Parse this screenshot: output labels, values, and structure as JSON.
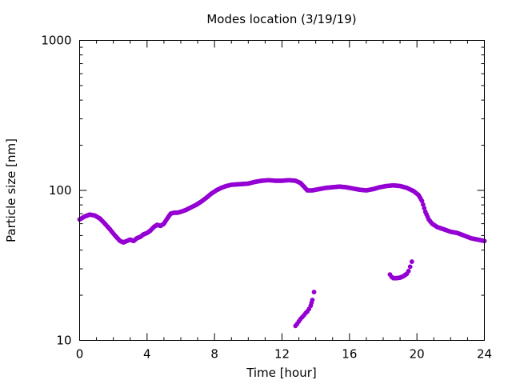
{
  "chart_data": {
    "type": "scatter",
    "title": "Modes location (3/19/19)",
    "xlabel": "Time [hour]",
    "ylabel": "Particle size [nm]",
    "xlim": [
      0,
      24
    ],
    "ylim": [
      10,
      1000
    ],
    "yscale": "log",
    "grid": false,
    "legend": "none",
    "x_ticks": [
      0,
      4,
      8,
      12,
      16,
      20,
      24
    ],
    "y_ticks": [
      10,
      100,
      1000
    ],
    "x_tick_labels": [
      "0",
      "4",
      "8",
      "12",
      "16",
      "20",
      "24"
    ],
    "y_tick_labels": [
      "10",
      "100",
      "1000"
    ],
    "marker_color": "#9400d3",
    "series": [
      {
        "points": [
          [
            0.0,
            64
          ],
          [
            0.3,
            67
          ],
          [
            0.6,
            69
          ],
          [
            0.9,
            68
          ],
          [
            1.2,
            65
          ],
          [
            1.5,
            60
          ],
          [
            1.8,
            55
          ],
          [
            2.1,
            50
          ],
          [
            2.4,
            46
          ],
          [
            2.6,
            45
          ],
          [
            2.8,
            46
          ],
          [
            3.0,
            47
          ],
          [
            3.2,
            46
          ],
          [
            3.4,
            48
          ],
          [
            3.6,
            49
          ],
          [
            3.8,
            51
          ],
          [
            4.0,
            52
          ],
          [
            4.2,
            54
          ],
          [
            4.4,
            57
          ],
          [
            4.6,
            59
          ],
          [
            4.8,
            58
          ],
          [
            5.0,
            60
          ],
          [
            5.2,
            65
          ],
          [
            5.4,
            70
          ],
          [
            5.6,
            71
          ],
          [
            5.8,
            71
          ],
          [
            6.0,
            72
          ],
          [
            6.3,
            74
          ],
          [
            6.6,
            77
          ],
          [
            6.9,
            80
          ],
          [
            7.2,
            84
          ],
          [
            7.5,
            89
          ],
          [
            7.8,
            95
          ],
          [
            8.1,
            100
          ],
          [
            8.4,
            104
          ],
          [
            8.7,
            107
          ],
          [
            9.0,
            109
          ],
          [
            9.5,
            110
          ],
          [
            10.0,
            111
          ],
          [
            10.4,
            114
          ],
          [
            10.8,
            116
          ],
          [
            11.2,
            117
          ],
          [
            11.6,
            116
          ],
          [
            12.0,
            116
          ],
          [
            12.4,
            117
          ],
          [
            12.8,
            116
          ],
          [
            13.1,
            112
          ],
          [
            13.3,
            106
          ],
          [
            13.5,
            100
          ],
          [
            13.8,
            100
          ],
          [
            14.2,
            102
          ],
          [
            14.6,
            104
          ],
          [
            15.0,
            105
          ],
          [
            15.4,
            106
          ],
          [
            15.8,
            105
          ],
          [
            16.2,
            103
          ],
          [
            16.6,
            101
          ],
          [
            17.0,
            100
          ],
          [
            17.4,
            102
          ],
          [
            17.8,
            105
          ],
          [
            18.2,
            107
          ],
          [
            18.6,
            108
          ],
          [
            19.0,
            107
          ],
          [
            19.4,
            104
          ],
          [
            19.8,
            99
          ],
          [
            20.1,
            93
          ],
          [
            20.3,
            85
          ],
          [
            20.5,
            72
          ],
          [
            20.7,
            64
          ],
          [
            20.9,
            60
          ],
          [
            21.2,
            57
          ],
          [
            21.6,
            55
          ],
          [
            22.0,
            53
          ],
          [
            22.4,
            52
          ],
          [
            22.8,
            50
          ],
          [
            23.2,
            48
          ],
          [
            23.6,
            47
          ],
          [
            24.0,
            46
          ]
        ]
      },
      {
        "points": [
          [
            12.8,
            12.5
          ],
          [
            12.9,
            12.9
          ],
          [
            13.0,
            13.4
          ],
          [
            13.1,
            13.9
          ],
          [
            13.2,
            14.3
          ],
          [
            13.3,
            14.7
          ],
          [
            13.4,
            15.2
          ],
          [
            13.5,
            15.6
          ],
          [
            13.6,
            16.2
          ],
          [
            13.7,
            17.0
          ],
          [
            13.75,
            17.8
          ],
          [
            13.8,
            18.6
          ],
          [
            13.9,
            21.0
          ],
          [
            18.4,
            27.5
          ],
          [
            18.5,
            26.5
          ],
          [
            18.6,
            26.0
          ],
          [
            18.8,
            26.0
          ],
          [
            19.0,
            26.2
          ],
          [
            19.2,
            26.8
          ],
          [
            19.4,
            27.8
          ],
          [
            19.5,
            29.0
          ],
          [
            19.6,
            31.0
          ],
          [
            19.7,
            33.5
          ]
        ]
      }
    ]
  }
}
